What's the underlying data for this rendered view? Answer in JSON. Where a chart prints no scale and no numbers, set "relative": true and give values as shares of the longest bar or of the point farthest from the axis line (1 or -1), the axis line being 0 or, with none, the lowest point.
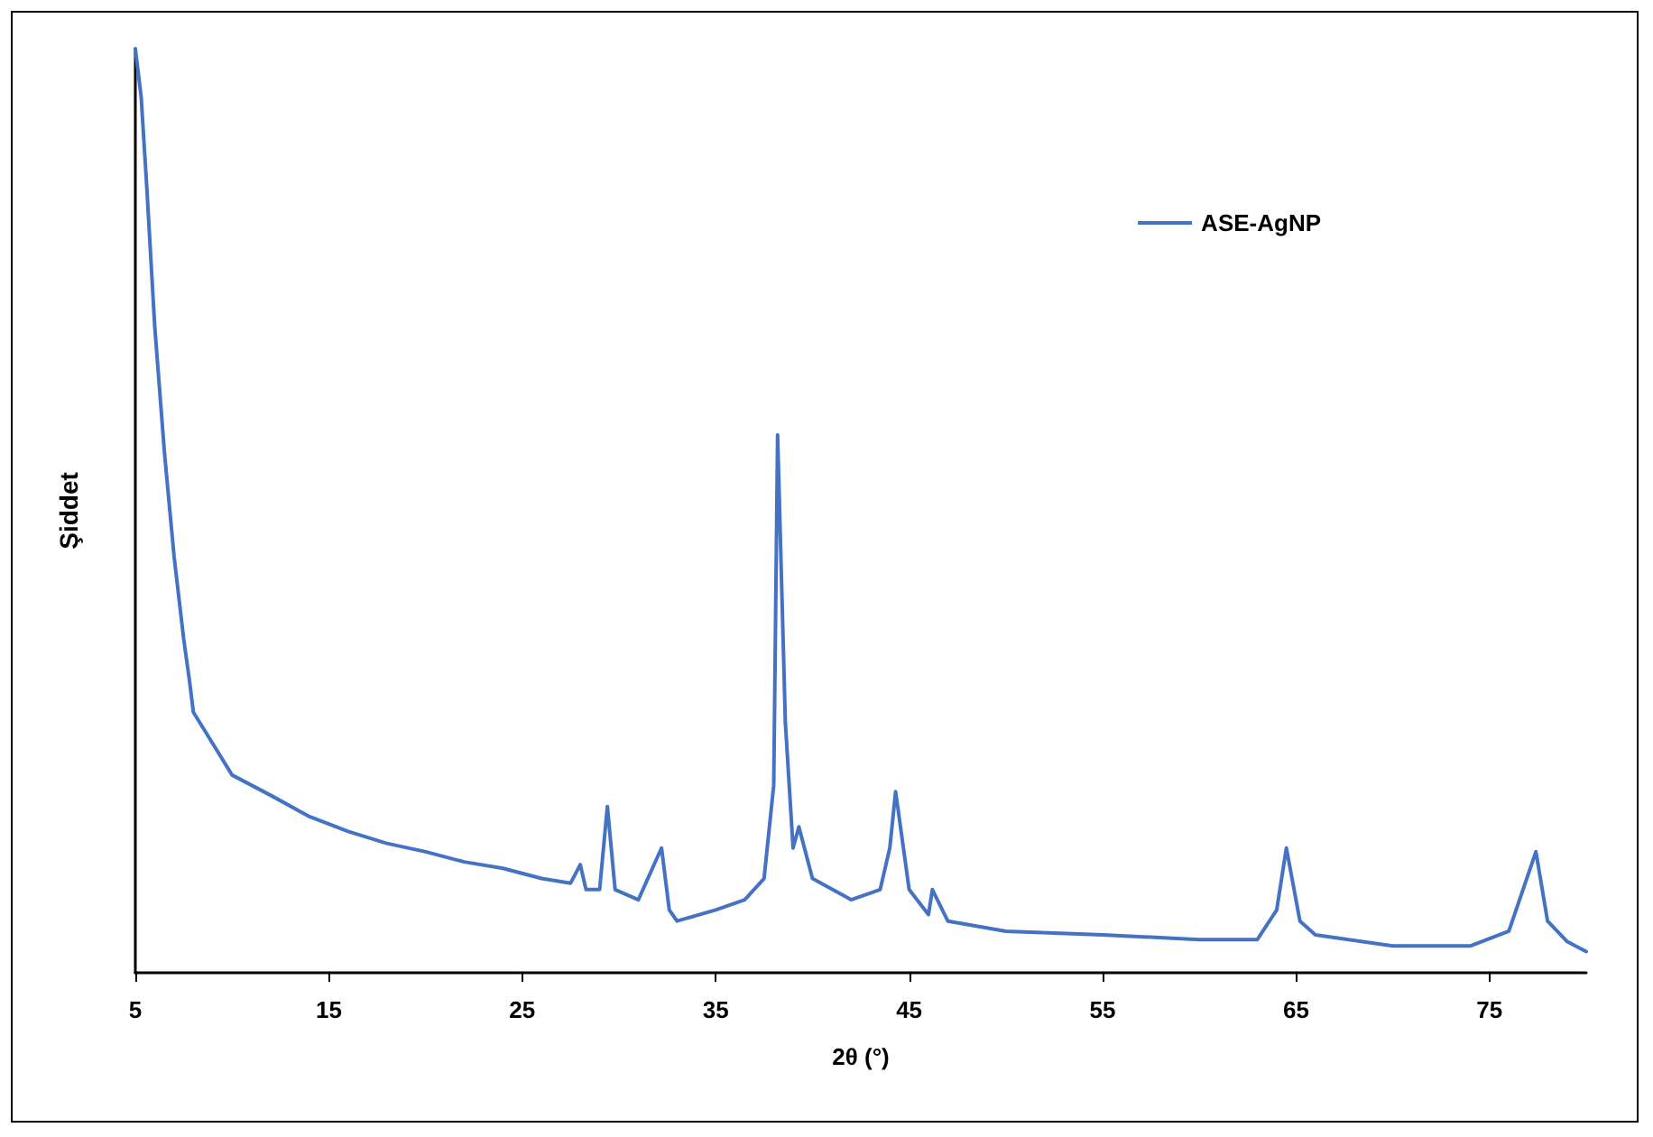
{
  "chart_data": {
    "type": "line",
    "xlabel": "2θ (°)",
    "ylabel": "Şiddet",
    "relative": true,
    "xlim": [
      5,
      80
    ],
    "xticks": [
      5,
      15,
      25,
      35,
      45,
      55,
      65,
      75
    ],
    "grid": false,
    "legend": "top right",
    "marker": "none",
    "line_style": "solid",
    "series": [
      {
        "name": "ASE-AgNP",
        "color": "#4472c4",
        "x": [
          5,
          5.3,
          5.6,
          6,
          6.5,
          7,
          7.5,
          7.8,
          8,
          9,
          10,
          11,
          12,
          14,
          16,
          18,
          20,
          22,
          24,
          26,
          27.5,
          28,
          28.3,
          29,
          29.4,
          29.8,
          31,
          32.2,
          32.6,
          33,
          35,
          36.5,
          37.5,
          38,
          38.2,
          38.6,
          39,
          39.3,
          40,
          42,
          43.5,
          44,
          44.3,
          45,
          46,
          46.2,
          47,
          50,
          55,
          60,
          63,
          64,
          64.5,
          65.2,
          66,
          70,
          74,
          76,
          77.4,
          78,
          79,
          80
        ],
        "values": [
          1.0,
          0.948,
          0.847,
          0.7,
          0.564,
          0.451,
          0.361,
          0.316,
          0.282,
          0.248,
          0.214,
          0.203,
          0.192,
          0.169,
          0.153,
          0.14,
          0.131,
          0.12,
          0.113,
          0.102,
          0.097,
          0.117,
          0.09,
          0.09,
          0.18,
          0.09,
          0.079,
          0.135,
          0.068,
          0.056,
          0.068,
          0.079,
          0.102,
          0.203,
          0.582,
          0.271,
          0.135,
          0.158,
          0.102,
          0.079,
          0.09,
          0.135,
          0.196,
          0.09,
          0.063,
          0.09,
          0.056,
          0.045,
          0.041,
          0.036,
          0.036,
          0.068,
          0.135,
          0.056,
          0.041,
          0.029,
          0.029,
          0.045,
          0.131,
          0.056,
          0.034,
          0.023
        ]
      }
    ]
  }
}
